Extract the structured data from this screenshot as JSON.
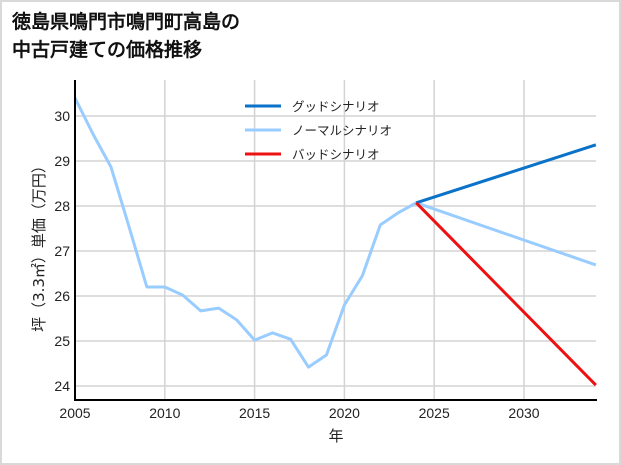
{
  "chart_data": {
    "type": "line",
    "title": "徳島県鳴門市鳴門町高島の\n中古戸建ての価格推移",
    "xlabel": "年",
    "ylabel": "坪（3.3㎡）単価（万円）",
    "xlim": [
      2005,
      2034
    ],
    "ylim": [
      23.7,
      30.6
    ],
    "x_ticks": [
      2005,
      2010,
      2015,
      2020,
      2025,
      2030
    ],
    "y_ticks": [
      24,
      25,
      26,
      27,
      28,
      29,
      30
    ],
    "grid": true,
    "legend_position": "upper center",
    "series": [
      {
        "name": "グッドシナリオ",
        "color": "#0a72c8",
        "x": [
          2024,
          2034
        ],
        "values": [
          28.07,
          29.36
        ]
      },
      {
        "name": "ノーマルシナリオ",
        "color": "#99ccff",
        "x": [
          2005,
          2006,
          2007,
          2008,
          2009,
          2010,
          2011,
          2012,
          2013,
          2014,
          2015,
          2016,
          2017,
          2018,
          2019,
          2020,
          2021,
          2022,
          2023,
          2024,
          2034
        ],
        "values": [
          30.4,
          29.6,
          28.87,
          27.55,
          26.2,
          26.2,
          26.02,
          25.67,
          25.73,
          25.47,
          25.02,
          25.18,
          25.04,
          24.42,
          24.69,
          25.8,
          26.45,
          27.58,
          27.85,
          28.07,
          26.69
        ]
      },
      {
        "name": "バッドシナリオ",
        "color": "#ee1111",
        "x": [
          2024,
          2034
        ],
        "values": [
          28.07,
          24.02
        ]
      }
    ]
  }
}
